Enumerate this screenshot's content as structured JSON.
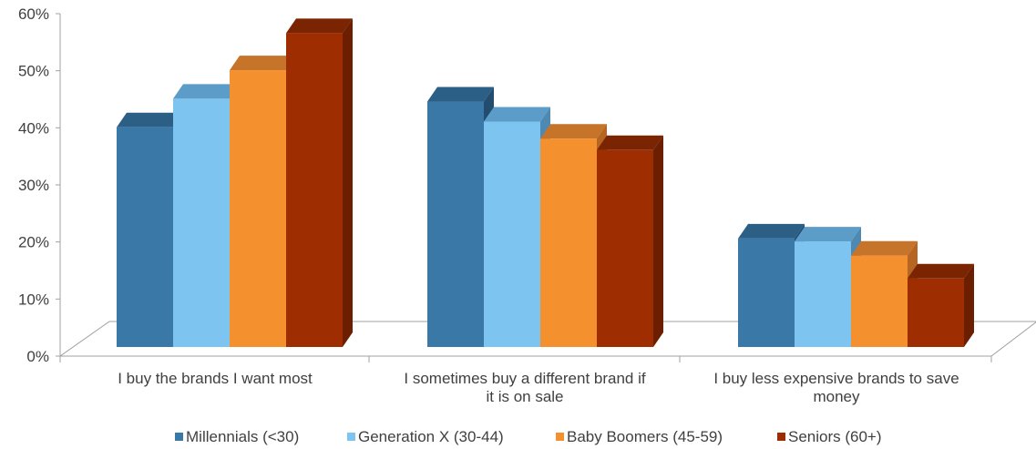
{
  "chart_data": {
    "type": "bar",
    "categories": [
      [
        "I buy the brands I want most"
      ],
      [
        "I sometimes buy a different brand if",
        "it is on sale"
      ],
      [
        "I buy less expensive brands to save",
        "money"
      ]
    ],
    "series": [
      {
        "name": "Millennials (<30)",
        "values": [
          38.5,
          43.0,
          19.0
        ],
        "color": "#3A78A8",
        "color_top": "#2C5F86",
        "color_side": "#234D6E"
      },
      {
        "name": "Generation X (30-44)",
        "values": [
          43.5,
          39.5,
          18.5
        ],
        "color": "#7DC4F0",
        "color_top": "#5B9CC8",
        "color_side": "#4E89B3"
      },
      {
        "name": "Baby Boomers (45-59)",
        "values": [
          48.5,
          36.5,
          16.0
        ],
        "color": "#F5902F",
        "color_top": "#C5742A",
        "color_side": "#B66522"
      },
      {
        "name": "Seniors (60+)",
        "values": [
          55.0,
          34.5,
          12.0
        ],
        "color": "#9E2E02",
        "color_top": "#7A2402",
        "color_side": "#6B1E00"
      }
    ],
    "y_ticks": [
      "0%",
      "10%",
      "20%",
      "30%",
      "40%",
      "50%",
      "60%"
    ],
    "ylim": [
      0,
      60
    ],
    "legend_position": "bottom",
    "grid": false,
    "style": "3d-clustered-column"
  }
}
